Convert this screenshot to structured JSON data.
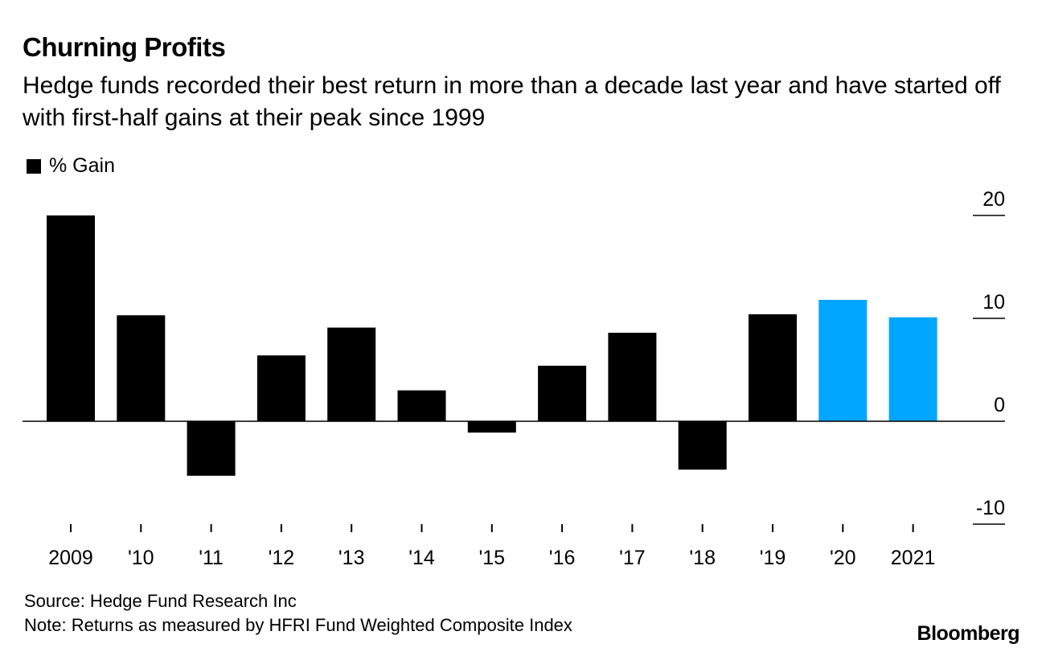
{
  "header": {
    "title": "Churning Profits",
    "subtitle": "Hedge funds recorded their best return in more than a decade last year and have started off with first-half gains at their peak since 1999"
  },
  "legend": {
    "label": "% Gain"
  },
  "footer": {
    "source": "Source: Hedge Fund Research Inc",
    "note": "Note: Returns as measured by HFRI Fund Weighted Composite Index"
  },
  "brand": {
    "name": "Bloomberg"
  },
  "colors": {
    "default_bar": "#000000",
    "highlight_bar": "#00a6ff",
    "axis": "#000000"
  },
  "chart_data": {
    "type": "bar",
    "title": "Churning Profits",
    "xlabel": "",
    "ylabel": "% Gain",
    "ylim": [
      -10,
      20
    ],
    "yticks": [
      20,
      10,
      0,
      -10
    ],
    "ytick_labels": [
      "20",
      "10",
      "0",
      "-10"
    ],
    "grid": false,
    "legend_position": "top-left",
    "categories": [
      "2009",
      "'10",
      "'11",
      "'12",
      "'13",
      "'14",
      "'15",
      "'16",
      "'17",
      "'18",
      "'19",
      "'20",
      "2021"
    ],
    "values": [
      20.0,
      10.3,
      -5.3,
      6.4,
      9.1,
      3.0,
      -1.1,
      5.4,
      8.6,
      -4.7,
      10.4,
      11.8,
      10.1
    ],
    "highlighted": [
      "'20",
      "2021"
    ]
  }
}
